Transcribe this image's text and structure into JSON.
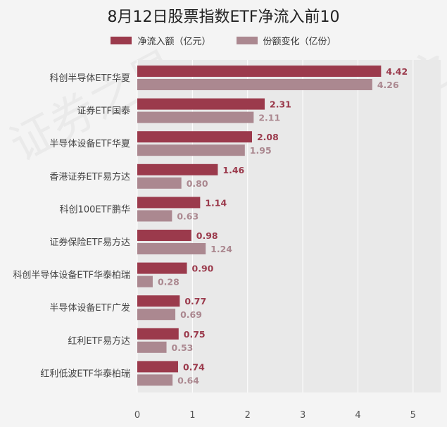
{
  "chart_data": {
    "type": "bar",
    "orientation": "horizontal",
    "title": "8月12日股票指数ETF净流入前10",
    "categories": [
      "科创半导体ETF华夏",
      "证券ETF国泰",
      "半导体设备ETF华夏",
      "香港证券ETF易方达",
      "科创100ETF鹏华",
      "证券保险ETF易方达",
      "科创半导体设备ETF华泰柏瑞",
      "半导体设备ETF广发",
      "红利ETF易方达",
      "红利低波ETF华泰柏瑞"
    ],
    "series": [
      {
        "name": "净流入额（亿元）",
        "color": "#9b3a4c",
        "values": [
          4.42,
          2.31,
          2.08,
          1.46,
          1.14,
          0.98,
          0.9,
          0.77,
          0.75,
          0.74
        ],
        "labels": [
          "4.42",
          "2.31",
          "2.08",
          "1.46",
          "1.14",
          "0.98",
          "0.90",
          "0.77",
          "0.75",
          "0.74"
        ]
      },
      {
        "name": "份额变化（亿份）",
        "color": "#ab8890",
        "values": [
          4.26,
          2.11,
          1.95,
          0.8,
          0.63,
          1.24,
          0.28,
          0.69,
          0.53,
          0.64
        ],
        "labels": [
          "4.26",
          "2.11",
          "1.95",
          "0.80",
          "0.63",
          "1.24",
          "0.28",
          "0.69",
          "0.53",
          "0.64"
        ]
      }
    ],
    "xlim": [
      0,
      5.5
    ],
    "xticks": [
      "0",
      "1",
      "2",
      "3",
      "4",
      "5"
    ],
    "grid": true,
    "legend_position": "top"
  },
  "watermark": "证券之星"
}
